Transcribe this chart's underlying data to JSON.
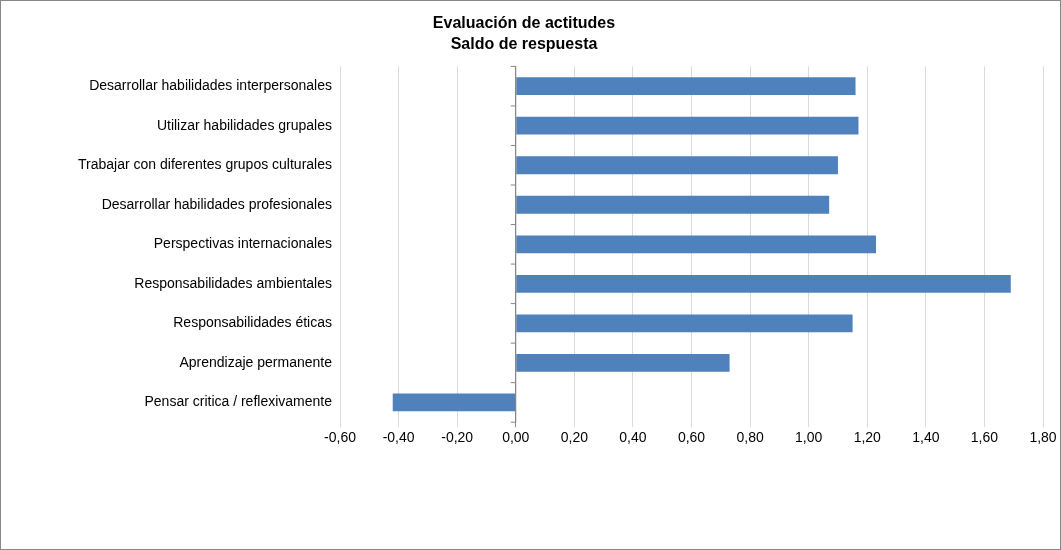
{
  "chart_data": {
    "type": "bar",
    "orientation": "horizontal",
    "title": "Evaluación de actitudes",
    "subtitle": "Saldo de respuesta",
    "categories": [
      "Desarrollar habilidades interpersonales",
      "Utilizar habilidades grupales",
      "Trabajar con diferentes grupos culturales",
      "Desarrollar habilidades profesionales",
      "Perspectivas internacionales",
      "Responsabilidades ambientales",
      "Responsabilidades éticas",
      "Aprendizaje permanente",
      "Pensar critica / reflexivamente"
    ],
    "values": [
      1.16,
      1.17,
      1.1,
      1.07,
      1.23,
      1.69,
      1.15,
      0.73,
      -0.42
    ],
    "color": "#4f81bd",
    "xlim": [
      -0.6,
      1.8
    ],
    "xticks": [
      {
        "value": -0.6,
        "label": "-0,60"
      },
      {
        "value": -0.4,
        "label": "-0,40"
      },
      {
        "value": -0.2,
        "label": "-0,20"
      },
      {
        "value": 0,
        "label": "0,00"
      },
      {
        "value": 0.2,
        "label": "0,20"
      },
      {
        "value": 0.4,
        "label": "0,40"
      },
      {
        "value": 0.6,
        "label": "0,60"
      },
      {
        "value": 0.8,
        "label": "0,80"
      },
      {
        "value": 1,
        "label": "1,00"
      },
      {
        "value": 1.2,
        "label": "1,20"
      },
      {
        "value": 1.4,
        "label": "1,40"
      },
      {
        "value": 1.6,
        "label": "1,60"
      },
      {
        "value": 1.8,
        "label": "1,80"
      }
    ],
    "grid": "x",
    "legend": false
  }
}
